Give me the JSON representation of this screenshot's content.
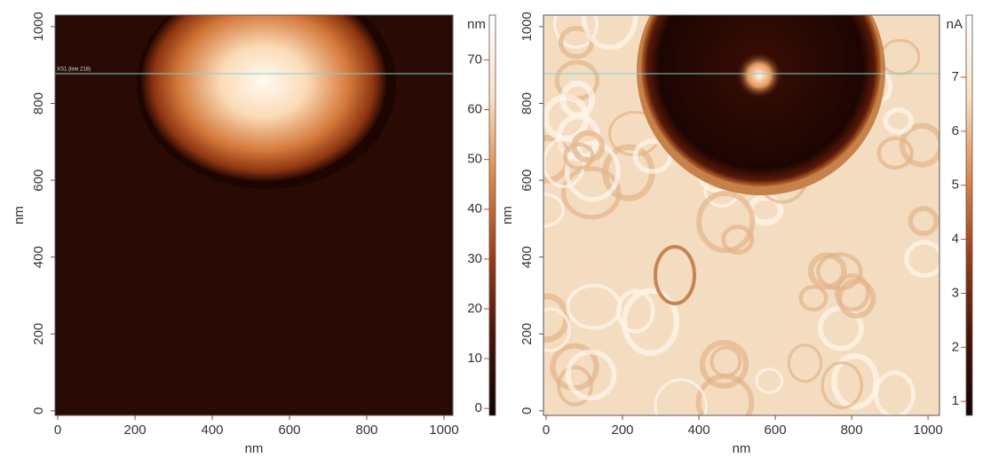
{
  "chart_data": [
    {
      "type": "image",
      "x_label": "nm",
      "y_label": "nm",
      "xlim": [
        -7,
        1023
      ],
      "ylim": [
        -12,
        1030
      ],
      "xticks": [
        0,
        200,
        400,
        600,
        800,
        1000
      ],
      "yticks": [
        0,
        200,
        400,
        600,
        800,
        1000
      ],
      "annotation": "XS1 (line 218)",
      "colorbar": {
        "label": "nm",
        "clim": [
          -1.4,
          79
        ],
        "ticks": [
          0,
          10,
          20,
          30,
          40,
          50,
          60,
          70
        ],
        "colormap": [
          "#120302",
          "#4a1207",
          "#9c3f15",
          "#e0894a",
          "#fbe2c6",
          "#ffffff"
        ]
      }
    },
    {
      "type": "image",
      "x_label": "nm",
      "y_label": "nm",
      "xlim": [
        -7,
        1030
      ],
      "ylim": [
        -12,
        1030
      ],
      "xticks": [
        0,
        200,
        400,
        600,
        800,
        1000
      ],
      "yticks": [
        0,
        200,
        400,
        600,
        800,
        1000
      ],
      "colorbar": {
        "label": "nA",
        "clim": [
          0.74,
          8.15
        ],
        "ticks": [
          1,
          2,
          3,
          4,
          5,
          6,
          7
        ],
        "colormap": [
          "#120302",
          "#4a1207",
          "#9c3f15",
          "#e0894a",
          "#fbe2c6",
          "#ffffff"
        ]
      }
    }
  ]
}
